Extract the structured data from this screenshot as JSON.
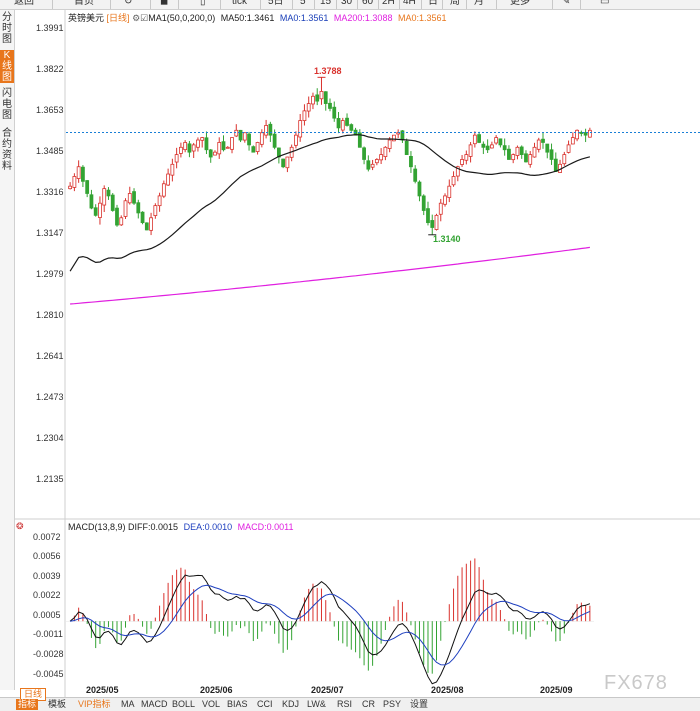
{
  "toolbar": {
    "items": [
      "返回",
      "首页",
      "tick",
      "5日",
      "5",
      "15",
      "30",
      "60",
      "2H",
      "4H",
      "日",
      "周",
      "月",
      "更多"
    ]
  },
  "side_tabs": [
    "分时图",
    "K线图",
    "闪电图",
    "合约资料"
  ],
  "main_header": {
    "name": "英镑美元",
    "period": "[日线]",
    "indicator": "MA1(50,0,200,0)",
    "ma50": "MA50:1.3461",
    "ma0": "MA0:1.3561",
    "ma200": "MA200:1.3088",
    "ma0b": "MA0:1.3561"
  },
  "macd_header": {
    "name": "MACD(13,8,9)",
    "diff": "DIFF:0.0015",
    "dea": "DEA:0.0010",
    "macd": "MACD:0.0011"
  },
  "price_axis": [
    "1.3991",
    "1.3822",
    "1.3653",
    "1.3485",
    "1.3316",
    "1.3147",
    "1.2979",
    "1.2810",
    "1.2641",
    "1.2473",
    "1.2304",
    "1.2135"
  ],
  "macd_axis": [
    "0.0072",
    "0.0056",
    "0.0039",
    "0.0022",
    "0.0005",
    "-0.0011",
    "-0.0028",
    "-0.0045"
  ],
  "x_labels": [
    "2025/05",
    "2025/06",
    "2025/07",
    "2025/08",
    "2025/09"
  ],
  "annotations": {
    "high": "1.3788",
    "low": "1.3140"
  },
  "colors": {
    "up": "#d9322d",
    "down": "#33a333",
    "ma50": "#1a1a1a",
    "ma200": "#e020e0",
    "last": "#1a7fd6",
    "dea": "#1e3fbf",
    "diff": "#111111"
  },
  "bottom_tabs": [
    "日线",
    "指标",
    "模板",
    "VIP指标",
    "MA",
    "MACD",
    "BOLL",
    "VOL",
    "BIAS",
    "CCI",
    "KDJ",
    "LW&",
    "RSI",
    "CR",
    "PSY",
    "设置"
  ],
  "watermark": "FX678",
  "chart_data": [
    {
      "type": "candlestick",
      "title": "英镑美元 [日线]",
      "x_range": [
        "2025/04",
        "2025/09"
      ],
      "ylim": [
        1.2135,
        1.3991
      ],
      "last_price": 1.3561,
      "high": 1.3788,
      "low": 1.314,
      "ma50_last": 1.3461,
      "ma200_last": 1.3088,
      "legend": "top-left",
      "grid": false,
      "close_series": [
        1.334,
        1.338,
        1.342,
        1.336,
        1.331,
        1.325,
        1.322,
        1.327,
        1.333,
        1.33,
        1.324,
        1.318,
        1.321,
        1.328,
        1.331,
        1.327,
        1.323,
        1.319,
        1.316,
        1.321,
        1.326,
        1.33,
        1.335,
        1.339,
        1.343,
        1.347,
        1.35,
        1.352,
        1.348,
        1.351,
        1.353,
        1.354,
        1.349,
        1.346,
        1.348,
        1.352,
        1.349,
        1.35,
        1.354,
        1.357,
        1.353,
        1.356,
        1.351,
        1.348,
        1.352,
        1.356,
        1.359,
        1.355,
        1.35,
        1.346,
        1.342,
        1.346,
        1.35,
        1.355,
        1.361,
        1.365,
        1.368,
        1.371,
        1.369,
        1.373,
        1.368,
        1.366,
        1.362,
        1.358,
        1.361,
        1.359,
        1.357,
        1.355,
        1.35,
        1.345,
        1.341,
        1.343,
        1.345,
        1.347,
        1.35,
        1.353,
        1.355,
        1.356,
        1.353,
        1.347,
        1.342,
        1.336,
        1.33,
        1.324,
        1.319,
        1.317,
        1.322,
        1.327,
        1.33,
        1.334,
        1.338,
        1.342,
        1.345,
        1.347,
        1.351,
        1.355,
        1.352,
        1.35,
        1.349,
        1.351,
        1.354,
        1.351,
        1.349,
        1.345,
        1.347,
        1.35,
        1.347,
        1.344,
        1.347,
        1.35,
        1.353,
        1.352,
        1.348,
        1.345,
        1.34,
        1.343,
        1.347,
        1.351,
        1.354,
        1.357,
        1.356,
        1.355,
        1.357
      ]
    },
    {
      "type": "macd",
      "title": "MACD(13,8,9)",
      "ylim": [
        -0.0052,
        0.0072
      ],
      "diff_last": 0.0015,
      "dea_last": 0.001,
      "macd_last": 0.0011
    }
  ]
}
